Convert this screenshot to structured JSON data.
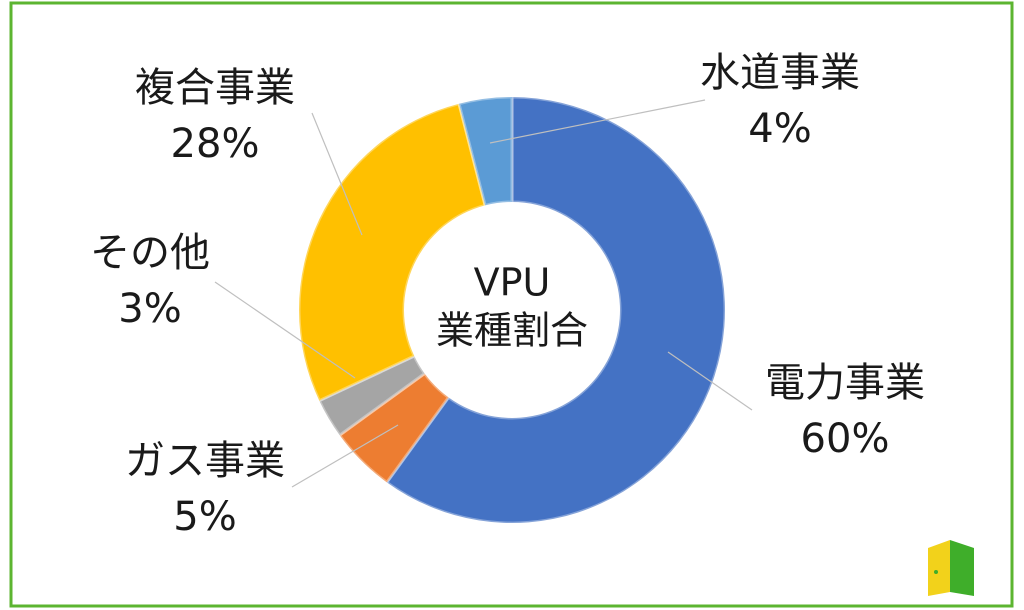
{
  "chart_data": {
    "type": "pie",
    "donut": true,
    "center_text": [
      "VPU",
      "業種割合"
    ],
    "categories": [
      "電力事業",
      "ガス事業",
      "その他",
      "複合事業",
      "水道事業"
    ],
    "values": [
      60,
      5,
      3,
      28,
      4
    ],
    "value_labels": [
      "60%",
      "5%",
      "3%",
      "28%",
      "4%"
    ],
    "colors": [
      "#4472c4",
      "#ed7d31",
      "#a5a5a5",
      "#ffc000",
      "#5b9bd5"
    ]
  }
}
